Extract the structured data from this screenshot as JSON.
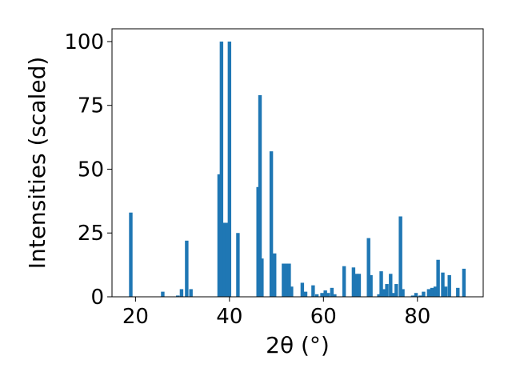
{
  "chart_data": {
    "type": "bar",
    "title": "",
    "xlabel": "2θ (°)",
    "ylabel": "Intensities (scaled)",
    "xlim": [
      15,
      94
    ],
    "ylim": [
      0,
      105
    ],
    "x_ticks": [
      20,
      40,
      60,
      80
    ],
    "y_ticks": [
      0,
      25,
      50,
      75,
      100
    ],
    "grid": false,
    "bar_color": "#1f77b4",
    "bar_width": 0.75,
    "series": [
      {
        "x": [
          19.0,
          25.8,
          29.0,
          29.8,
          30.9,
          31.8,
          37.8,
          38.3,
          38.9,
          39.4,
          40.0,
          41.8,
          46.1,
          46.5,
          46.9,
          48.9,
          49.6,
          51.5,
          52.1,
          52.7,
          53.2,
          55.5,
          56.2,
          57.8,
          58.6,
          59.7,
          60.4,
          61.0,
          61.8,
          62.4,
          64.4,
          66.4,
          67.1,
          67.6,
          69.6,
          70.1,
          71.8,
          72.3,
          72.8,
          73.5,
          74.3,
          74.8,
          75.5,
          76.4,
          76.9,
          79.0,
          79.7,
          80.6,
          81.3,
          82.4,
          83.1,
          83.8,
          84.4,
          85.4,
          86.0,
          86.8,
          88.6,
          89.9
        ],
        "values": [
          33,
          2,
          0.5,
          3,
          22,
          3,
          48,
          100,
          29,
          29,
          100,
          25,
          43,
          79,
          15,
          57,
          17,
          13,
          13,
          13,
          4,
          5.5,
          2,
          4.5,
          1,
          1.5,
          2.5,
          1.5,
          3.5,
          1,
          12,
          11.5,
          9,
          9,
          23,
          8.5,
          1,
          10,
          3,
          5,
          9,
          1.5,
          5,
          31.5,
          3,
          0.5,
          1.5,
          0.5,
          2,
          3,
          3.5,
          4,
          14.5,
          9.5,
          4,
          8.5,
          3.5,
          11
        ]
      }
    ]
  }
}
